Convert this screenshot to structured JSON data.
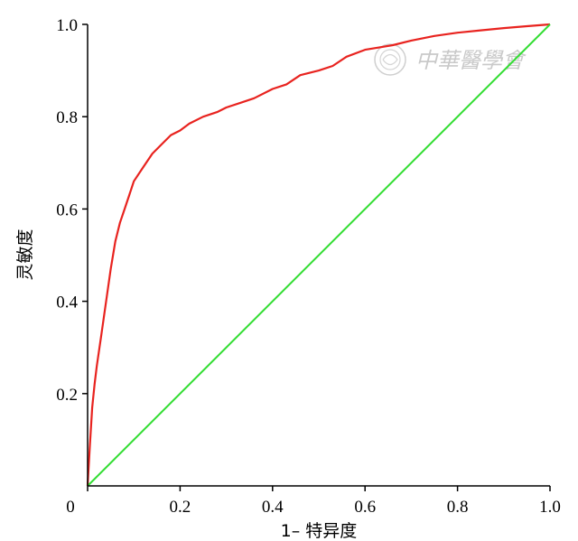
{
  "chart_data": {
    "type": "line",
    "xlabel": "1– 特异度",
    "ylabel": "灵敏度",
    "xlim": [
      0,
      1
    ],
    "ylim": [
      0,
      1
    ],
    "xticks": [
      "0",
      "0.2",
      "0.4",
      "0.6",
      "0.8",
      "1.0"
    ],
    "yticks": [
      "0.2",
      "0.4",
      "0.6",
      "0.8",
      "1.0"
    ],
    "xtick_values": [
      0,
      0.2,
      0.4,
      0.6,
      0.8,
      1.0
    ],
    "ytick_values": [
      0.2,
      0.4,
      0.6,
      0.8,
      1.0
    ],
    "grid": false,
    "series": [
      {
        "color": "#e8231f",
        "x": [
          0,
          0.005,
          0.01,
          0.015,
          0.02,
          0.03,
          0.04,
          0.05,
          0.06,
          0.07,
          0.08,
          0.09,
          0.1,
          0.12,
          0.14,
          0.16,
          0.18,
          0.2,
          0.22,
          0.25,
          0.28,
          0.3,
          0.33,
          0.36,
          0.4,
          0.43,
          0.46,
          0.5,
          0.53,
          0.56,
          0.6,
          0.63,
          0.66,
          0.7,
          0.75,
          0.8,
          0.85,
          0.9,
          0.95,
          1.0
        ],
        "y": [
          0,
          0.09,
          0.17,
          0.22,
          0.26,
          0.33,
          0.4,
          0.47,
          0.53,
          0.57,
          0.6,
          0.63,
          0.66,
          0.69,
          0.72,
          0.74,
          0.76,
          0.77,
          0.785,
          0.8,
          0.81,
          0.82,
          0.83,
          0.84,
          0.86,
          0.87,
          0.89,
          0.9,
          0.91,
          0.93,
          0.945,
          0.95,
          0.955,
          0.965,
          0.975,
          0.982,
          0.987,
          0.992,
          0.996,
          1.0
        ]
      },
      {
        "color": "#33dd33",
        "x": [
          0,
          1
        ],
        "y": [
          0,
          1
        ]
      }
    ]
  },
  "watermark": {
    "text": "中華醫學會"
  }
}
